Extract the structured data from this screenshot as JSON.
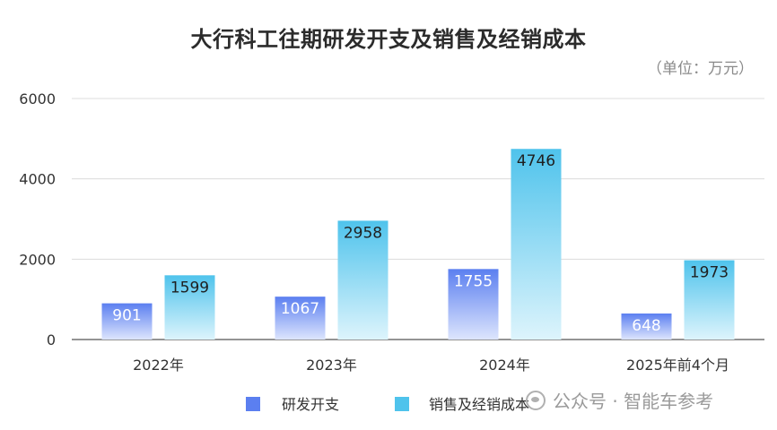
{
  "chart_data": {
    "type": "bar",
    "title": "大行科工往期研发开支及销售及经销成本",
    "unit_note": "（单位：万元）",
    "categories": [
      "2022年",
      "2023年",
      "2024年",
      "2025年前4个月"
    ],
    "series": [
      {
        "name": "研发开支",
        "values": [
          901,
          1067,
          1755,
          648
        ],
        "color": "#5b7ff0",
        "color_light": "#dde5fd"
      },
      {
        "name": "销售及经销成本",
        "values": [
          1599,
          2958,
          4746,
          1973
        ],
        "color": "#4fc3ec",
        "color_light": "#ddf4fc"
      }
    ],
    "yticks": [
      0,
      2000,
      4000,
      6000
    ],
    "ylim": [
      0,
      6000
    ],
    "grid": true,
    "legend_position": "bottom"
  },
  "watermark": {
    "text": "公众号 · 智能车参考",
    "icon": "wechat-icon"
  }
}
